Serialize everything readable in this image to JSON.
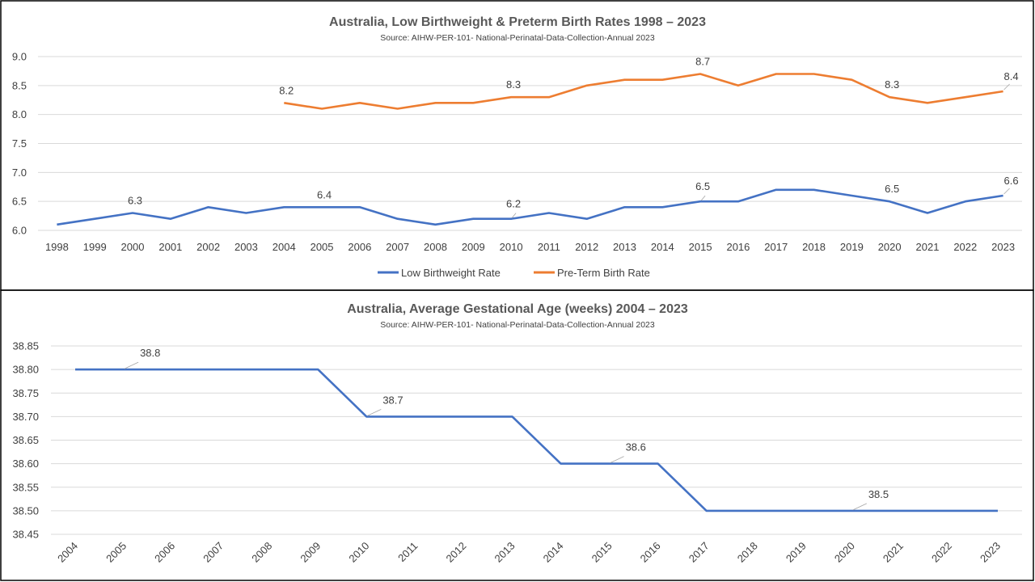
{
  "colors": {
    "low_birthweight": "#4472C4",
    "preterm": "#ED7D31",
    "gestational": "#4472C4"
  },
  "chart_data": [
    {
      "type": "line",
      "title": "Australia, Low Birthweight & Preterm Birth Rates 1998 – 2023",
      "subtitle": "Source: AIHW-PER-101- National-Perinatal-Data-Collection-Annual 2023",
      "categories": [
        "1998",
        "1999",
        "2000",
        "2001",
        "2002",
        "2003",
        "2004",
        "2005",
        "2006",
        "2007",
        "2008",
        "2009",
        "2010",
        "2011",
        "2012",
        "2013",
        "2014",
        "2015",
        "2016",
        "2017",
        "2018",
        "2019",
        "2020",
        "2021",
        "2022",
        "2023"
      ],
      "yticks": [
        "6.0",
        "6.5",
        "7.0",
        "7.5",
        "8.0",
        "8.5",
        "9.0"
      ],
      "ylim": [
        6.0,
        9.0
      ],
      "legend_position": "bottom",
      "series": [
        {
          "name": "Low Birthweight Rate",
          "values": [
            6.1,
            6.2,
            6.3,
            6.2,
            6.4,
            6.3,
            6.4,
            6.4,
            6.4,
            6.2,
            6.1,
            6.2,
            6.2,
            6.3,
            6.2,
            6.4,
            6.4,
            6.5,
            6.5,
            6.7,
            6.7,
            6.6,
            6.5,
            6.3,
            6.5,
            6.6
          ],
          "labels": [
            {
              "category": "2000",
              "text": "6.3"
            },
            {
              "category": "2005",
              "text": "6.4"
            },
            {
              "category": "2010",
              "text": "6.2"
            },
            {
              "category": "2015",
              "text": "6.5"
            },
            {
              "category": "2020",
              "text": "6.5"
            },
            {
              "category": "2023",
              "text": "6.6"
            }
          ]
        },
        {
          "name": "Pre-Term Birth Rate",
          "values": [
            null,
            null,
            null,
            null,
            null,
            null,
            8.2,
            8.1,
            8.2,
            8.1,
            8.2,
            8.2,
            8.3,
            8.3,
            8.5,
            8.6,
            8.6,
            8.7,
            8.5,
            8.7,
            8.7,
            8.6,
            8.3,
            8.2,
            8.3,
            8.4
          ],
          "labels": [
            {
              "category": "2004",
              "text": "8.2"
            },
            {
              "category": "2010",
              "text": "8.3"
            },
            {
              "category": "2015",
              "text": "8.7"
            },
            {
              "category": "2020",
              "text": "8.3"
            },
            {
              "category": "2023",
              "text": "8.4"
            }
          ]
        }
      ]
    },
    {
      "type": "line",
      "title": "Australia, Average Gestational Age (weeks) 2004 – 2023",
      "subtitle": "Source: AIHW-PER-101- National-Perinatal-Data-Collection-Annual 2023",
      "categories": [
        "2004",
        "2005",
        "2006",
        "2007",
        "2008",
        "2009",
        "2010",
        "2011",
        "2012",
        "2013",
        "2014",
        "2015",
        "2016",
        "2017",
        "2018",
        "2019",
        "2020",
        "2021",
        "2022",
        "2023"
      ],
      "yticks": [
        "38.45",
        "38.50",
        "38.55",
        "38.60",
        "38.65",
        "38.70",
        "38.75",
        "38.80",
        "38.85"
      ],
      "ylim": [
        38.45,
        38.85
      ],
      "series": [
        {
          "name": "Average Gestational Age",
          "values": [
            38.8,
            38.8,
            38.8,
            38.8,
            38.8,
            38.8,
            38.7,
            38.7,
            38.7,
            38.7,
            38.6,
            38.6,
            38.6,
            38.5,
            38.5,
            38.5,
            38.5,
            38.5,
            38.5,
            38.5
          ],
          "labels": [
            {
              "category": "2005",
              "text": "38.8"
            },
            {
              "category": "2010",
              "text": "38.7"
            },
            {
              "category": "2015",
              "text": "38.6"
            },
            {
              "category": "2020",
              "text": "38.5"
            }
          ]
        }
      ]
    }
  ]
}
